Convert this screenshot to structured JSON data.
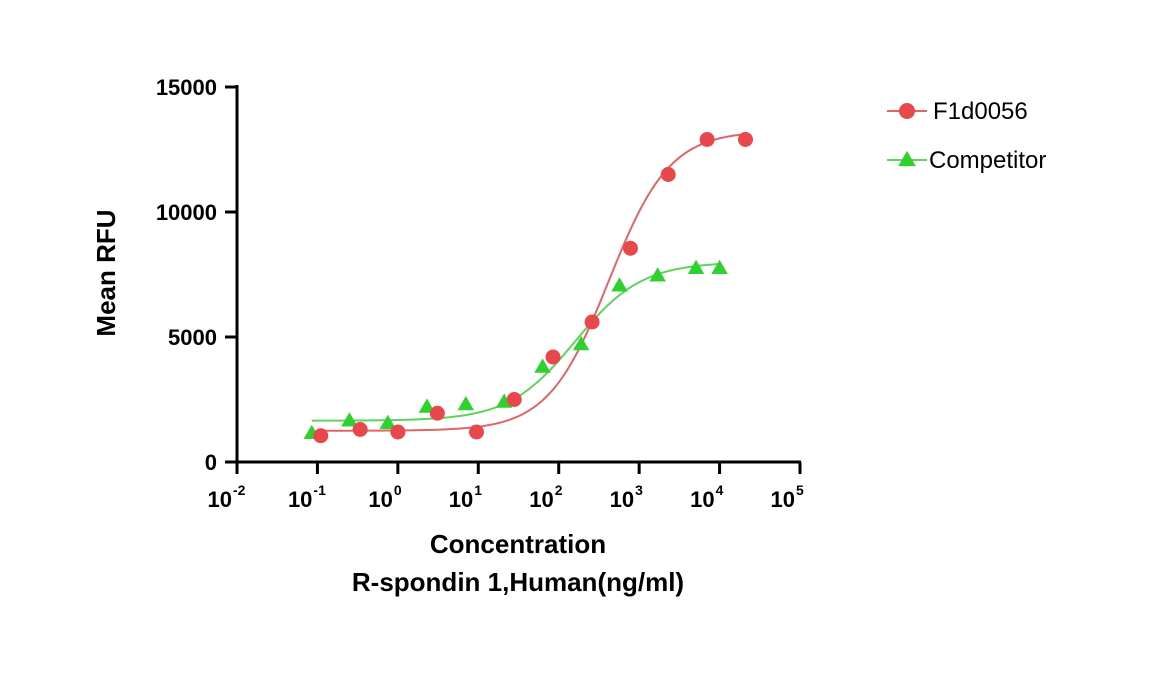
{
  "chart_data": {
    "type": "scatter",
    "xscale": "log10",
    "xlim": [
      0.01,
      100000
    ],
    "ylim": [
      0,
      15000
    ],
    "ylabel": "Mean RFU",
    "xlabel_line1": "Concentration",
    "xlabel_line2": "R-spondin 1,Human(ng/ml)",
    "y_ticks": [
      {
        "value": 0,
        "label": "0"
      },
      {
        "value": 5000,
        "label": "5000"
      },
      {
        "value": 10000,
        "label": "10000"
      },
      {
        "value": 15000,
        "label": "15000"
      }
    ],
    "x_ticks": [
      {
        "value": 0.01,
        "base": "10",
        "exp": "-2"
      },
      {
        "value": 0.1,
        "base": "10",
        "exp": "-1"
      },
      {
        "value": 1,
        "base": "10",
        "exp": "0"
      },
      {
        "value": 10,
        "base": "10",
        "exp": "1"
      },
      {
        "value": 100,
        "base": "10",
        "exp": "2"
      },
      {
        "value": 1000,
        "base": "10",
        "exp": "3"
      },
      {
        "value": 10000,
        "base": "10",
        "exp": "4"
      },
      {
        "value": 100000,
        "base": "10",
        "exp": "5"
      }
    ],
    "series": [
      {
        "name": "F1d0056",
        "marker": "circle",
        "color": "#e8474b",
        "line_color": "#e06666",
        "x": [
          0.11,
          0.34,
          1.0,
          3.1,
          9.5,
          28,
          85,
          260,
          780,
          2300,
          7000,
          21000
        ],
        "y": [
          1050,
          1300,
          1200,
          1950,
          1200,
          2500,
          4200,
          5600,
          8550,
          11500,
          12900,
          12900
        ],
        "fit": {
          "bottom": 1250,
          "top": 13250,
          "ec50": 420,
          "hill": 1.15
        }
      },
      {
        "name": "Competitor",
        "marker": "triangle",
        "color": "#2fd12f",
        "line_color": "#5fd35f",
        "x": [
          0.085,
          0.25,
          0.75,
          2.3,
          7,
          21,
          63,
          190,
          570,
          1700,
          5100,
          10000
        ],
        "y": [
          1150,
          1650,
          1550,
          2200,
          2300,
          2400,
          3800,
          4700,
          7050,
          7450,
          7750,
          7750
        ],
        "fit": {
          "bottom": 1650,
          "top": 8000,
          "ec50": 160,
          "hill": 1.05
        }
      }
    ]
  }
}
